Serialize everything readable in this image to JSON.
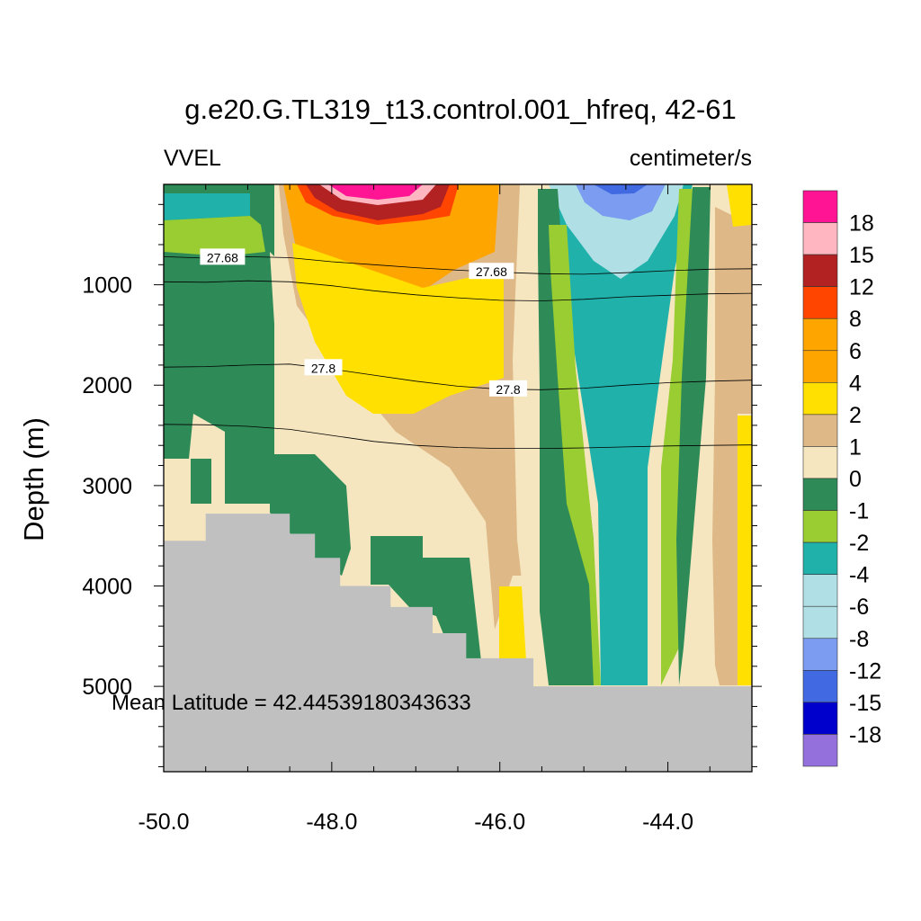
{
  "chart_data": {
    "type": "heatmap",
    "title": "g.e20.G.TL319_t13.control.001_hfreq, 42-61",
    "left_subtitle": "VVEL",
    "right_subtitle": "centimeter/s",
    "ylabel": "Depth (m)",
    "xlabel": "",
    "annotation": "Mean Latitude = 42.44539180343633",
    "x_range": [
      -50.0,
      -43.0
    ],
    "y_range": [
      0,
      5850
    ],
    "y_reversed": true,
    "x_ticks": [
      {
        "value": -50,
        "label": "-50.0"
      },
      {
        "value": -48,
        "label": "-48.0"
      },
      {
        "value": -46,
        "label": "-46.0"
      },
      {
        "value": -44,
        "label": "-44.0"
      }
    ],
    "y_ticks": [
      {
        "value": 1000,
        "label": "1000"
      },
      {
        "value": 2000,
        "label": "2000"
      },
      {
        "value": 3000,
        "label": "3000"
      },
      {
        "value": 4000,
        "label": "4000"
      },
      {
        "value": 5000,
        "label": "5000"
      }
    ],
    "grid": false,
    "colorbar": {
      "levels": [
        "18",
        "15",
        "12",
        "8",
        "6",
        "4",
        "2",
        "1",
        "0",
        "-1",
        "-2",
        "-4",
        "-6",
        "-8",
        "-12",
        "-15",
        "-18"
      ],
      "colors": [
        "#ff1493",
        "#ffb6c1",
        "#b22222",
        "#ff4500",
        "#ffa500",
        "#ffa500",
        "#ffe000",
        "#deb887",
        "#f5e6c0",
        "#2e8b57",
        "#9acd32",
        "#20b2aa",
        "#b0e0e6",
        "#b0e0e6",
        "#7b9cf0",
        "#4169e1",
        "#0000cd",
        "#9370db"
      ]
    },
    "missing_color": "#c0c0c0",
    "contours": [
      {
        "level": "27.68",
        "label_positions": [
          -49.3,
          -46.1
        ],
        "points": [
          [
            -50,
            720
          ],
          [
            -49.5,
            735
          ],
          [
            -49,
            720
          ],
          [
            -48.5,
            730
          ],
          [
            -48,
            770
          ],
          [
            -47.5,
            800
          ],
          [
            -47,
            830
          ],
          [
            -46.5,
            855
          ],
          [
            -46,
            875
          ],
          [
            -45.5,
            890
          ],
          [
            -45,
            895
          ],
          [
            -44.5,
            880
          ],
          [
            -44,
            860
          ],
          [
            -43.5,
            845
          ],
          [
            -43,
            840
          ]
        ]
      },
      {
        "level": "27.68",
        "label_positions": [],
        "points": [
          [
            -50,
            970
          ],
          [
            -49.5,
            975
          ],
          [
            -49,
            960
          ],
          [
            -48.5,
            970
          ],
          [
            -48,
            1010
          ],
          [
            -47.5,
            1060
          ],
          [
            -47,
            1100
          ],
          [
            -46.5,
            1130
          ],
          [
            -46,
            1155
          ],
          [
            -45.5,
            1160
          ],
          [
            -45,
            1145
          ],
          [
            -44.5,
            1120
          ],
          [
            -44,
            1105
          ],
          [
            -43.5,
            1090
          ],
          [
            -43,
            1085
          ]
        ]
      },
      {
        "level": "27.8",
        "label_positions": [
          -48.1,
          -45.9
        ],
        "points": [
          [
            -50,
            1820
          ],
          [
            -49.5,
            1815
          ],
          [
            -49,
            1800
          ],
          [
            -48.5,
            1790
          ],
          [
            -48,
            1840
          ],
          [
            -47.5,
            1900
          ],
          [
            -47,
            1960
          ],
          [
            -46.5,
            2010
          ],
          [
            -46,
            2040
          ],
          [
            -45.5,
            2045
          ],
          [
            -45,
            2030
          ],
          [
            -44.5,
            2000
          ],
          [
            -44,
            1975
          ],
          [
            -43.5,
            1960
          ],
          [
            -43,
            1950
          ]
        ]
      },
      {
        "level": "27.8",
        "label_positions": [],
        "points": [
          [
            -50,
            2390
          ],
          [
            -49.5,
            2395
          ],
          [
            -49,
            2410
          ],
          [
            -48.5,
            2440
          ],
          [
            -48,
            2500
          ],
          [
            -47.5,
            2560
          ],
          [
            -47,
            2600
          ],
          [
            -46.5,
            2620
          ],
          [
            -46,
            2630
          ],
          [
            -45.5,
            2630
          ],
          [
            -45,
            2625
          ],
          [
            -44.5,
            2615
          ],
          [
            -44,
            2605
          ],
          [
            -43.5,
            2600
          ],
          [
            -43,
            2595
          ]
        ]
      }
    ],
    "bathymetry": [
      [
        -50,
        3550
      ],
      [
        -49.5,
        3550
      ],
      [
        -49.5,
        3280
      ],
      [
        -48.5,
        3280
      ],
      [
        -48.5,
        3480
      ],
      [
        -48.2,
        3480
      ],
      [
        -48.2,
        3720
      ],
      [
        -47.9,
        3720
      ],
      [
        -47.9,
        4000
      ],
      [
        -47.3,
        4000
      ],
      [
        -47.3,
        4210
      ],
      [
        -46.8,
        4210
      ],
      [
        -46.8,
        4470
      ],
      [
        -46.4,
        4470
      ],
      [
        -46.4,
        4720
      ],
      [
        -45.6,
        4720
      ],
      [
        -45.6,
        5000
      ],
      [
        -43,
        5000
      ]
    ]
  }
}
